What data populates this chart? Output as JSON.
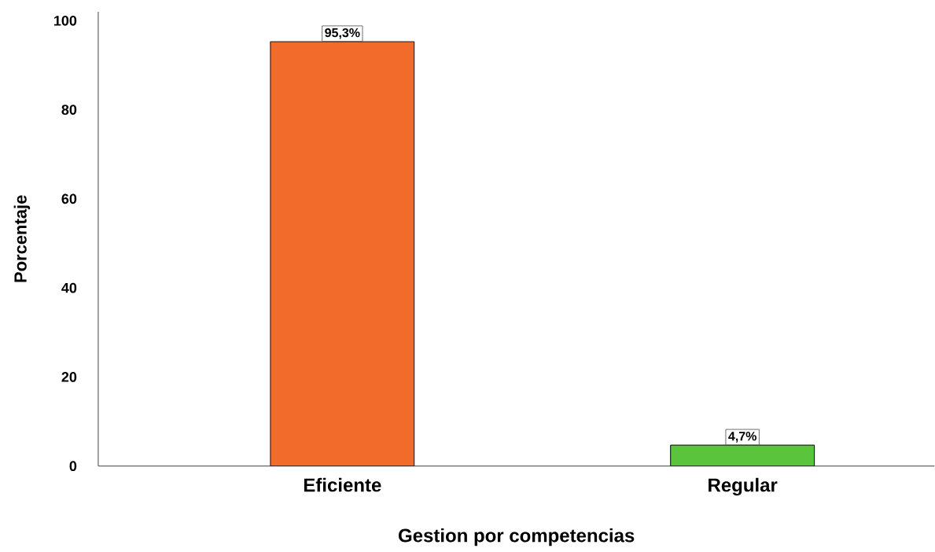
{
  "chart_data": {
    "type": "bar",
    "xlabel": "Gestion por competencias",
    "ylabel": "Porcentaje",
    "categories": [
      "Eficiente",
      "Regular"
    ],
    "values": [
      95.3,
      4.7
    ],
    "colors": [
      "#f26b2a",
      "#5ac43c"
    ],
    "value_labels": [
      "95,3%",
      "4,7%"
    ],
    "ylim": [
      0,
      102
    ],
    "yticks": [
      0,
      20,
      40,
      60,
      80,
      100
    ]
  }
}
